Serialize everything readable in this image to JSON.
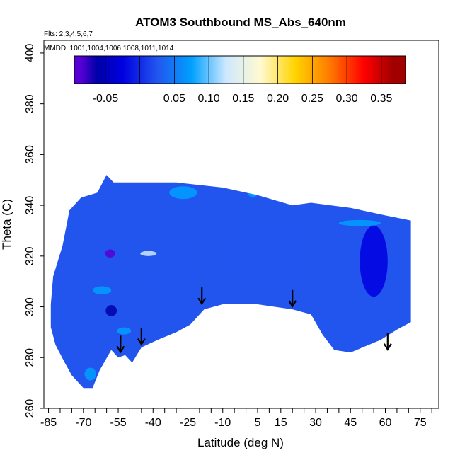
{
  "chart_data": {
    "type": "heatmap",
    "title": "ATOM3 Southbound MS_Abs_640nm",
    "annotations": {
      "flights": "Flts: 2,3,4,5,6,7",
      "dates": "MMDD: 1001,1004,1006,1008,1011,1014"
    },
    "xlabel": "Latitude (deg N)",
    "ylabel": "Theta (C)",
    "xlim": [
      -87,
      83
    ],
    "ylim": [
      260,
      405
    ],
    "x_ticks": [
      -85,
      -70,
      -55,
      -40,
      -25,
      -10,
      5,
      15,
      30,
      45,
      60,
      75
    ],
    "x_minor_step": 5,
    "y_ticks": [
      260,
      280,
      300,
      320,
      340,
      360,
      380,
      400
    ],
    "grid": false,
    "colorbar": {
      "placement": "top-inside",
      "range": [
        -0.095,
        0.385
      ],
      "boundaries": [
        -0.095,
        -0.075,
        -0.05,
        0.0,
        0.05,
        0.1,
        0.15,
        0.2,
        0.25,
        0.3,
        0.35,
        0.385
      ],
      "colors": [
        "#5500d4",
        "#0000a8",
        "#0000e0",
        "#2255ee",
        "#00a0ff",
        "#cfe8ff",
        "#fffad0",
        "#ffd400",
        "#ff7a00",
        "#ff0000",
        "#a00000"
      ],
      "ticks": [
        -0.05,
        0.05,
        0.1,
        0.15,
        0.2,
        0.25,
        0.3,
        0.35
      ],
      "tick_labels": [
        "-0.05",
        "0.05",
        "0.10",
        "0.15",
        "0.20",
        "0.25",
        "0.30",
        "0.35"
      ]
    },
    "field_boundary": [
      [
        -84,
        301
      ],
      [
        -83,
        312
      ],
      [
        -79,
        324
      ],
      [
        -76,
        338
      ],
      [
        -71,
        343
      ],
      [
        -64,
        345
      ],
      [
        -60,
        352
      ],
      [
        -57,
        349
      ],
      [
        -30,
        349
      ],
      [
        -10,
        347
      ],
      [
        5,
        344
      ],
      [
        20,
        340
      ],
      [
        28,
        341
      ],
      [
        45,
        339
      ],
      [
        60,
        336
      ],
      [
        71,
        334
      ],
      [
        71,
        294
      ],
      [
        65,
        291
      ],
      [
        58,
        287
      ],
      [
        45,
        282
      ],
      [
        38,
        283
      ],
      [
        33,
        289
      ],
      [
        28,
        297
      ],
      [
        20,
        299
      ],
      [
        5,
        301
      ],
      [
        -10,
        301
      ],
      [
        -18,
        299
      ],
      [
        -24,
        293
      ],
      [
        -30,
        290
      ],
      [
        -38,
        287
      ],
      [
        -45,
        284
      ],
      [
        -49,
        278
      ],
      [
        -52,
        281
      ],
      [
        -55,
        280
      ],
      [
        -58,
        283
      ],
      [
        -63,
        275
      ],
      [
        -66,
        268
      ],
      [
        -70,
        268
      ],
      [
        -75,
        273
      ],
      [
        -78,
        278
      ],
      [
        -82,
        285
      ],
      [
        -84,
        292
      ]
    ],
    "field_patches": [
      {
        "lat": -52.5,
        "theta": 290.5,
        "rlat": 3.0,
        "rtheta": 1.4,
        "value": 0.09
      },
      {
        "lat": -62.0,
        "theta": 306.5,
        "rlat": 4.0,
        "rtheta": 1.6,
        "value": 0.06
      },
      {
        "lat": -42.0,
        "theta": 321.0,
        "rlat": 3.5,
        "rtheta": 1.0,
        "value": 0.1
      },
      {
        "lat": -27.0,
        "theta": 345.0,
        "rlat": 6.0,
        "rtheta": 2.5,
        "value": 0.05
      },
      {
        "lat": -58.0,
        "theta": 298.5,
        "rlat": 2.4,
        "rtheta": 2.2,
        "value": -0.07
      },
      {
        "lat": -58.5,
        "theta": 321.0,
        "rlat": 2.2,
        "rtheta": 1.6,
        "value": -0.08
      },
      {
        "lat": -67.0,
        "theta": 273.5,
        "rlat": 2.5,
        "rtheta": 2.5,
        "value": 0.08
      },
      {
        "lat": 49.0,
        "theta": 333.0,
        "rlat": 9.0,
        "rtheta": 1.2,
        "value": 0.06
      },
      {
        "lat": 55.0,
        "theta": 318.0,
        "rlat": 6.0,
        "rtheta": 14.0,
        "value": -0.04
      },
      {
        "lat": 10.0,
        "theta": 320.0,
        "rlat": 14.0,
        "rtheta": 12.0,
        "value": 0.02
      },
      {
        "lat": -30.0,
        "theta": 310.0,
        "rlat": 8.0,
        "rtheta": 14.0,
        "value": 0.01
      },
      {
        "lat": 3.0,
        "theta": 344.5,
        "rlat": 2.0,
        "rtheta": 1.2,
        "value": 0.08
      }
    ],
    "arrows": [
      {
        "lat": -54,
        "theta": 285
      },
      {
        "lat": -45,
        "theta": 288
      },
      {
        "lat": -19,
        "theta": 304
      },
      {
        "lat": 20,
        "theta": 303
      },
      {
        "lat": 61,
        "theta": 286
      }
    ]
  }
}
